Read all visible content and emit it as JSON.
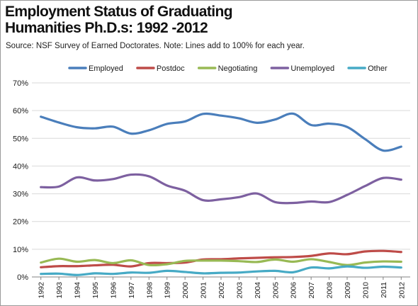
{
  "chart_data": {
    "type": "line",
    "title": "Employment Status of Graduating Humanities Ph.D.s: 1992 -2012",
    "title_lines": [
      "Employment Status of Graduating",
      "Humanities Ph.D.s: 1992 -2012"
    ],
    "subtitle": "Source: NSF Survey of Earned Doctorates. Note: Lines add to 100% for each year.",
    "xlabel": "",
    "ylabel": "",
    "x": [
      "1992",
      "1993",
      "1994",
      "1995",
      "1996",
      "1997",
      "1998",
      "1999",
      "2000",
      "2001",
      "2002",
      "2003",
      "2004",
      "2005",
      "2006",
      "2007",
      "2008",
      "2009",
      "2010",
      "2011",
      "2012"
    ],
    "ylim": [
      0,
      70
    ],
    "yticks": [
      "0%",
      "10%",
      "20%",
      "30%",
      "40%",
      "50%",
      "60%",
      "70%"
    ],
    "grid": true,
    "legend_position": "top",
    "series": [
      {
        "name": "Employed",
        "color": "#4a7ebb",
        "values": [
          57.8,
          55.7,
          54.0,
          53.6,
          54.2,
          51.7,
          52.9,
          55.2,
          56.1,
          58.8,
          58.2,
          57.2,
          55.6,
          56.8,
          58.9,
          54.8,
          55.3,
          54.1,
          49.7,
          45.6,
          47.0
        ]
      },
      {
        "name": "Postdoc",
        "color": "#be4b48",
        "values": [
          3.5,
          3.9,
          3.9,
          4.2,
          4.4,
          3.8,
          5.0,
          5.0,
          5.2,
          6.3,
          6.4,
          6.7,
          6.9,
          7.1,
          7.2,
          7.6,
          8.5,
          8.2,
          9.2,
          9.4,
          9.0
        ]
      },
      {
        "name": "Negotiating",
        "color": "#98b954",
        "values": [
          5.2,
          6.6,
          5.5,
          6.1,
          5.0,
          6.0,
          4.3,
          4.6,
          5.8,
          5.9,
          5.9,
          5.7,
          5.4,
          6.3,
          5.5,
          6.4,
          5.4,
          4.3,
          5.2,
          5.6,
          5.5
        ]
      },
      {
        "name": "Unemployed",
        "color": "#7d60a0",
        "values": [
          32.4,
          32.6,
          35.9,
          34.8,
          35.3,
          36.9,
          36.3,
          33.0,
          31.1,
          27.7,
          28.0,
          28.8,
          30.1,
          27.0,
          26.7,
          27.2,
          27.0,
          29.6,
          32.8,
          35.7,
          35.1
        ]
      },
      {
        "name": "Other",
        "color": "#46aac5",
        "values": [
          1.1,
          1.2,
          0.7,
          1.3,
          1.1,
          1.6,
          1.5,
          2.2,
          1.8,
          1.3,
          1.5,
          1.6,
          2.0,
          2.2,
          1.7,
          3.4,
          3.1,
          3.8,
          3.3,
          3.7,
          3.4
        ]
      }
    ]
  },
  "colors": {
    "grid": "#d9d9d9",
    "axis": "#808080",
    "text": "#1a1a1a"
  }
}
